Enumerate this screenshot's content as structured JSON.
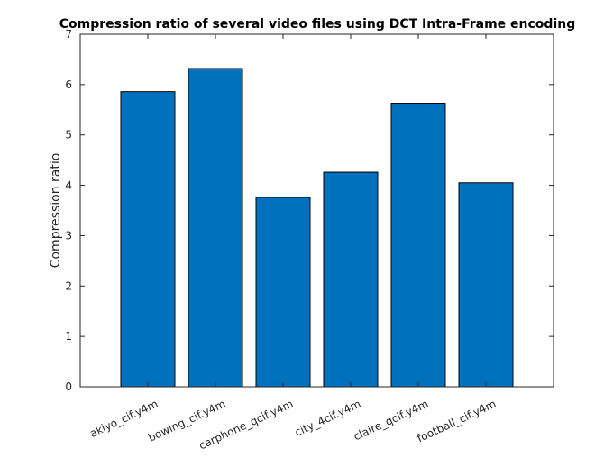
{
  "chart_data": {
    "type": "bar",
    "title": "Compression ratio of several video files using DCT Intra-Frame encoding",
    "xlabel": "",
    "ylabel": "Compression ratio",
    "categories": [
      "akiyo_cif.y4m",
      "bowing_cif.y4m",
      "carphone_qcif.y4m",
      "city_4cif.y4m",
      "claire_qcif.y4m",
      "football_cif.y4m"
    ],
    "values": [
      5.86,
      6.32,
      3.76,
      4.26,
      5.63,
      4.05
    ],
    "ylim": [
      0,
      7
    ],
    "yticks": [
      "0",
      "1",
      "2",
      "3",
      "4",
      "5",
      "6",
      "7"
    ],
    "grid": false,
    "legend": "none",
    "colors": {
      "bar": "#0072BD",
      "bar_edge": "#000000",
      "axis": "#262626"
    }
  }
}
